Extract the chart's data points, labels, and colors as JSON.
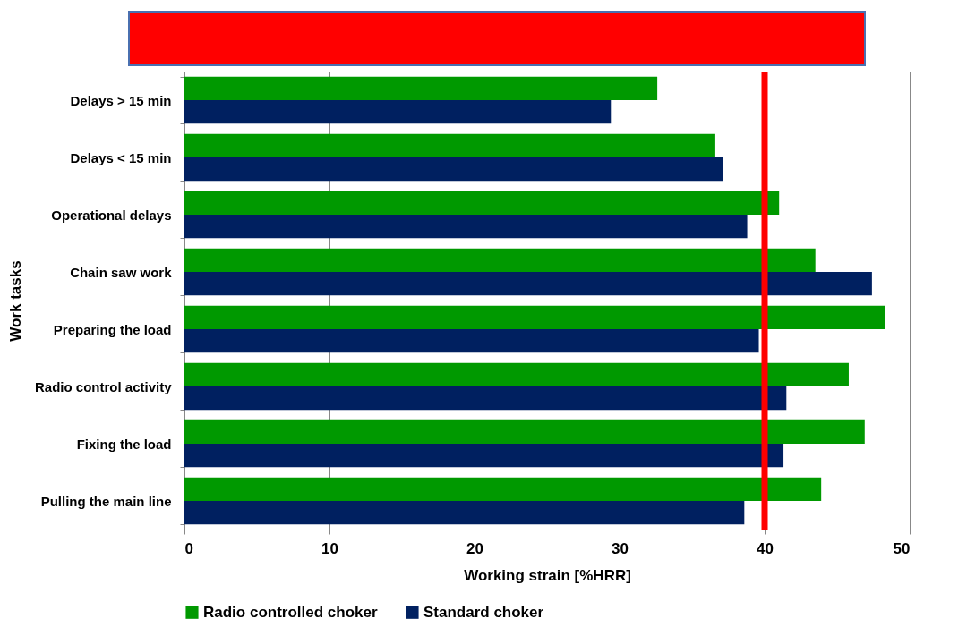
{
  "chart_data": {
    "type": "bar",
    "orientation": "horizontal",
    "xlabel": "Working strain [%HRR]",
    "ylabel": "Work tasks",
    "categories": [
      "Delays > 15 min",
      "Delays < 15 min",
      "Operational delays",
      "Chain saw work",
      "Preparing the load",
      "Radio control activity",
      "Fixing the load",
      "Pulling the main line"
    ],
    "series": [
      {
        "name": "Radio controlled choker",
        "color": "#009900",
        "values": [
          32.6,
          36.6,
          41.0,
          43.5,
          48.3,
          45.8,
          46.9,
          43.9
        ]
      },
      {
        "name": "Standard choker",
        "color": "#002060",
        "values": [
          29.4,
          37.1,
          38.8,
          47.4,
          39.6,
          41.5,
          41.3,
          38.6
        ]
      }
    ],
    "xlim": [
      0,
      50
    ],
    "xticks": [
      0,
      10,
      20,
      30,
      40,
      50
    ],
    "grid": "x",
    "legend": "bottom",
    "ref_lines": [
      {
        "axis": "x",
        "value": 40,
        "color": "#ff0000"
      }
    ]
  }
}
